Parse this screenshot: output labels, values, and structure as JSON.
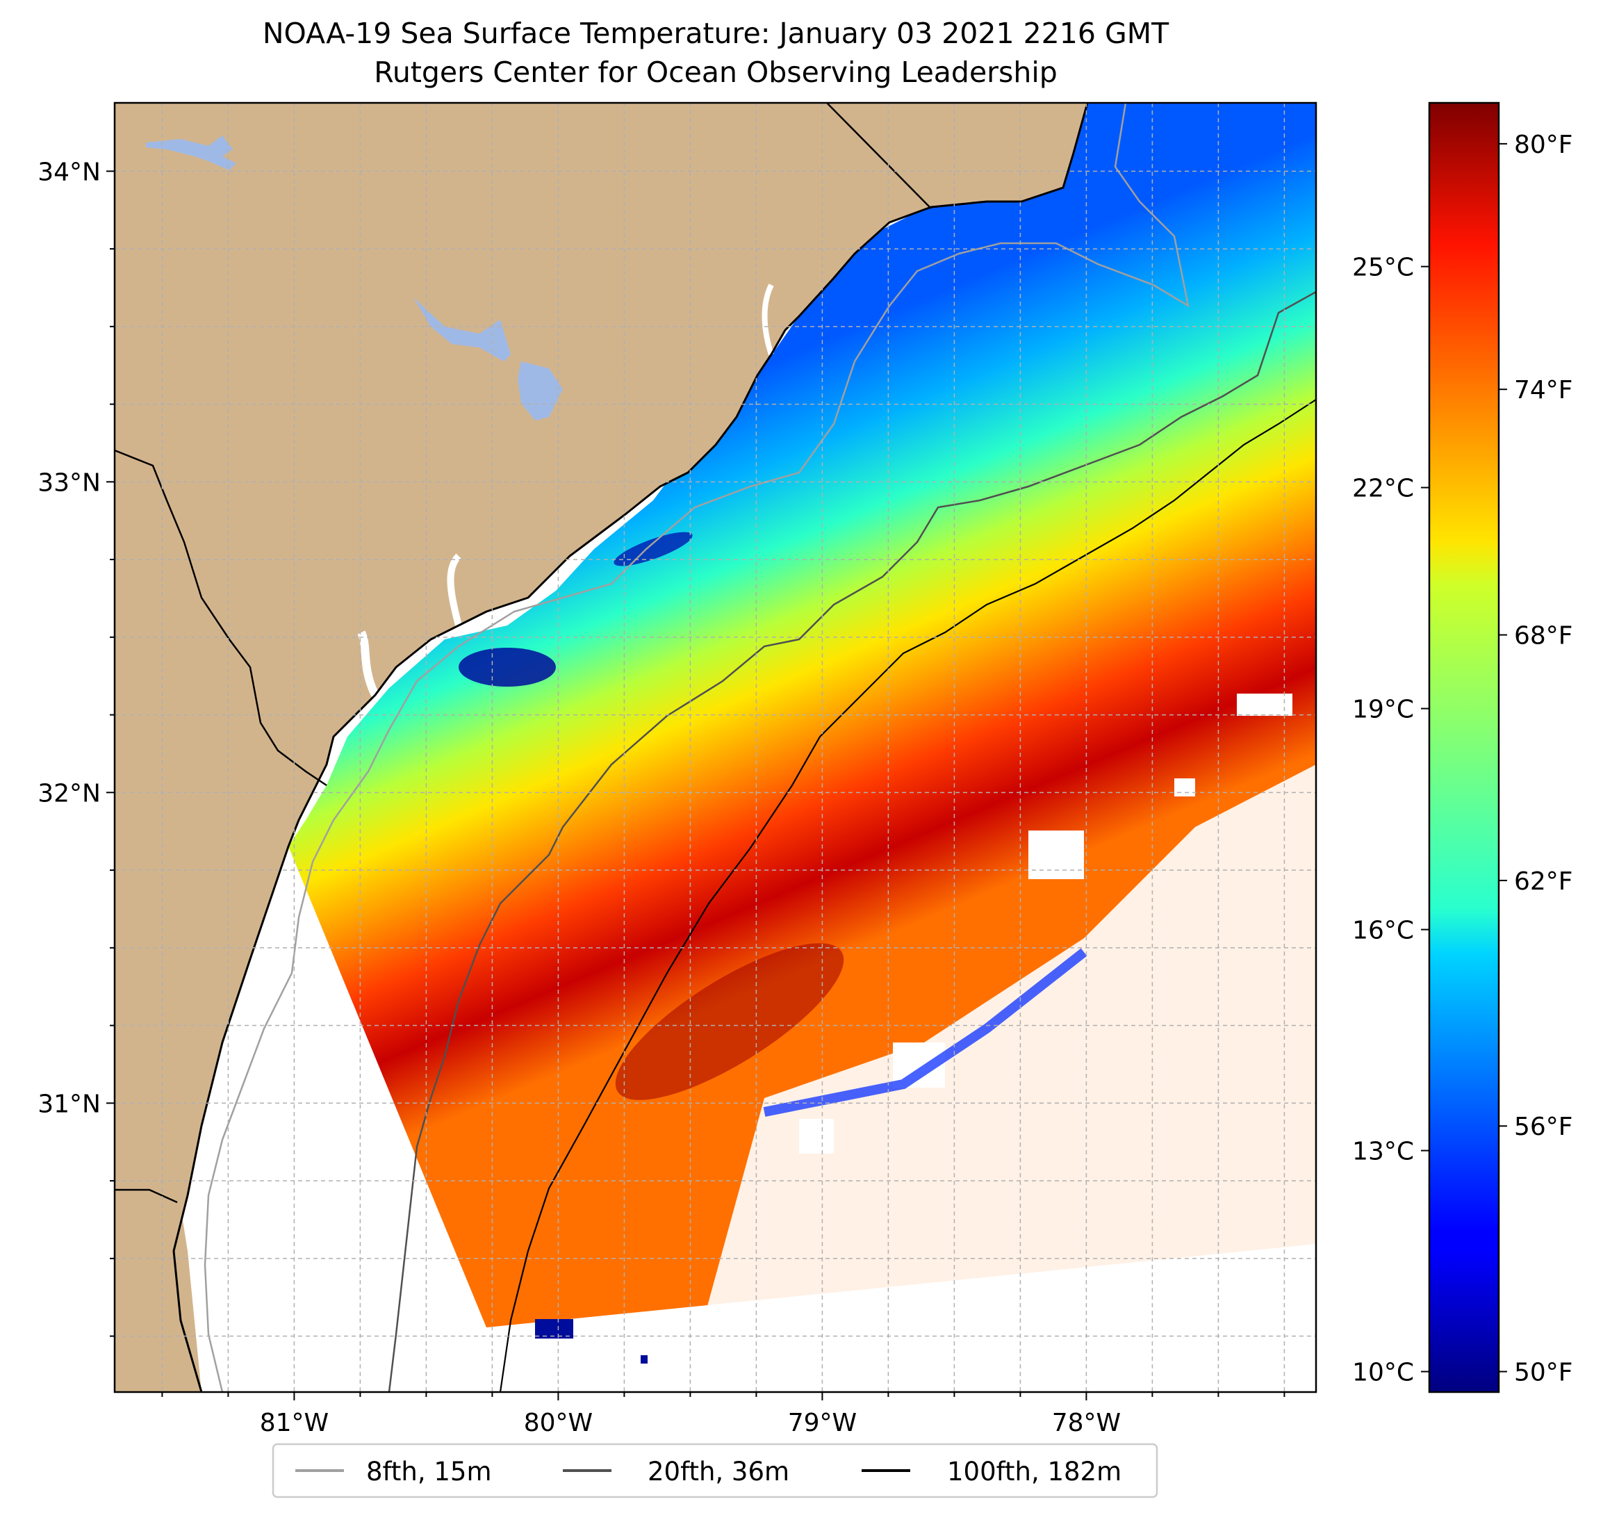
{
  "map": {
    "title_line1": "NOAA-19 Sea Surface Temperature: January 03 2021 2216 GMT",
    "title_line2": "Rutgers Center for Ocean Observing Leadership",
    "extent": {
      "lon_min": -81.68,
      "lon_max": -77.13,
      "lat_min": 30.07,
      "lat_max": 34.22
    },
    "lat_labels": [
      {
        "value": 34,
        "text": "34°N"
      },
      {
        "value": 33,
        "text": "33°N"
      },
      {
        "value": 32,
        "text": "32°N"
      },
      {
        "value": 31,
        "text": "31°N"
      }
    ],
    "lon_labels": [
      {
        "value": -81,
        "text": "81°W"
      },
      {
        "value": -80,
        "text": "80°W"
      },
      {
        "value": -79,
        "text": "79°W"
      },
      {
        "value": -78,
        "text": "78°W"
      }
    ],
    "grid_step_deg": 0.25,
    "colors": {
      "land": "#d2b48c",
      "lakes": "#9fb9e6",
      "grid": "#b0b0b0",
      "no_data": "#ffffff"
    }
  },
  "colorbar": {
    "celsius_ticks": [
      {
        "value": 25,
        "text": "25°C"
      },
      {
        "value": 22,
        "text": "22°C"
      },
      {
        "value": 19,
        "text": "19°C"
      },
      {
        "value": 16,
        "text": "16°C"
      },
      {
        "value": 13,
        "text": "13°C"
      },
      {
        "value": 10,
        "text": "10°C"
      }
    ],
    "fahrenheit_ticks": [
      {
        "value": 80,
        "text": "80°F"
      },
      {
        "value": 74,
        "text": "74°F"
      },
      {
        "value": 68,
        "text": "68°F"
      },
      {
        "value": 62,
        "text": "62°F"
      },
      {
        "value": 56,
        "text": "56°F"
      },
      {
        "value": 50,
        "text": "50°F"
      }
    ],
    "range_f": [
      49.5,
      81
    ],
    "colormap": "jet"
  },
  "legend": {
    "placement": "bottom-center",
    "items": [
      {
        "label": "8fth, 15m",
        "color": "#a0a0a0"
      },
      {
        "label": "20fth, 36m",
        "color": "#505050"
      },
      {
        "label": "100fth, 182m",
        "color": "#000000"
      }
    ]
  }
}
